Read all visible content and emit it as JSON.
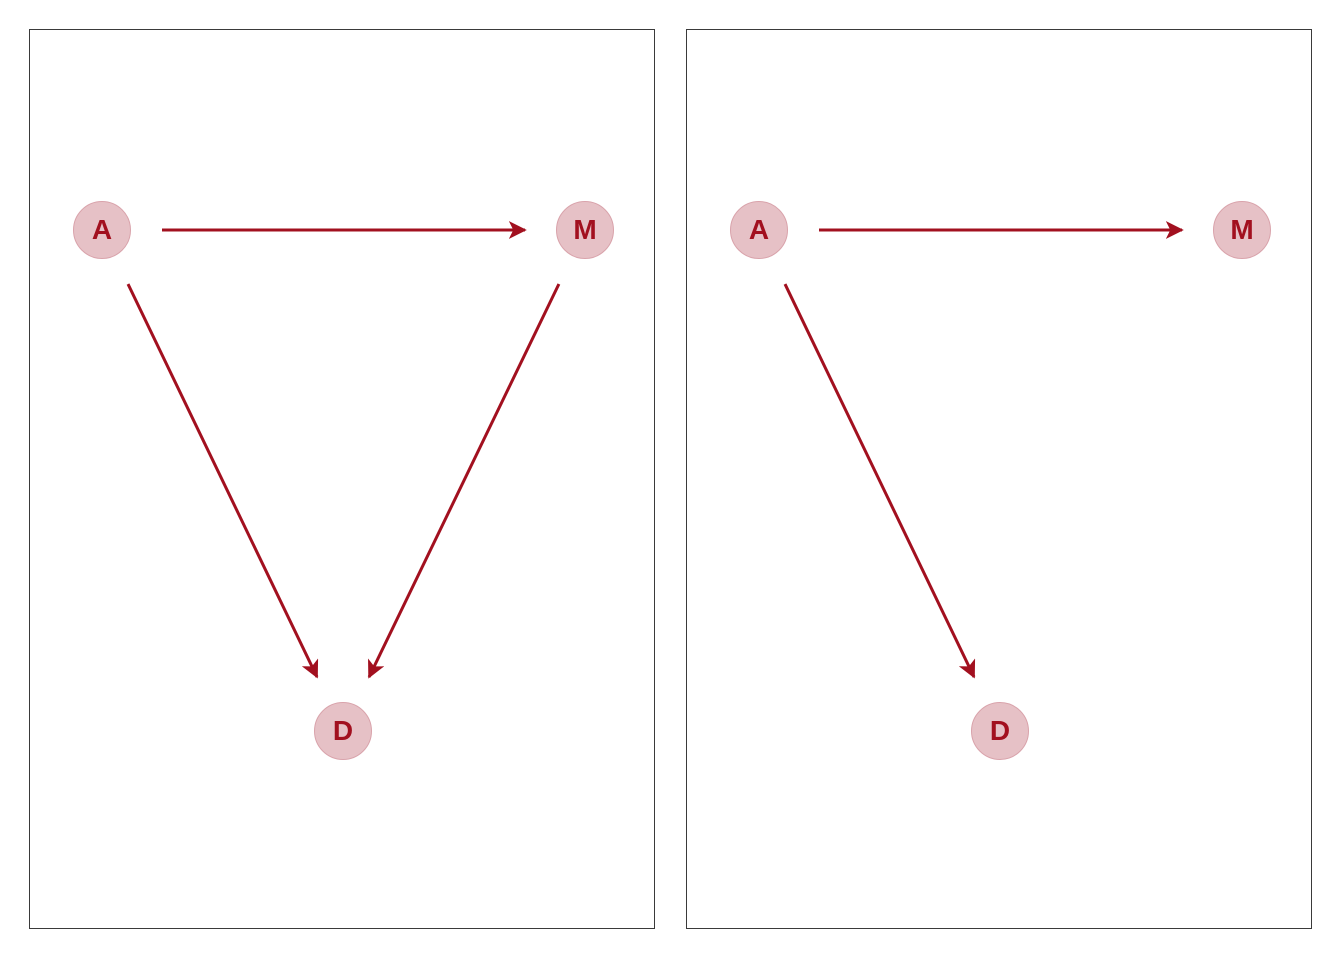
{
  "colors": {
    "edge": "#a2101f",
    "node_fill": "#e6c1c6",
    "node_border": "#d9a3ab",
    "node_text": "#a2101f",
    "panel_border": "#3a3a3a"
  },
  "panels": [
    {
      "nodes": [
        {
          "id": "A",
          "label": "A"
        },
        {
          "id": "M",
          "label": "M"
        },
        {
          "id": "D",
          "label": "D"
        }
      ],
      "edges": [
        {
          "from": "A",
          "to": "M"
        },
        {
          "from": "A",
          "to": "D"
        },
        {
          "from": "M",
          "to": "D"
        }
      ]
    },
    {
      "nodes": [
        {
          "id": "A",
          "label": "A"
        },
        {
          "id": "M",
          "label": "M"
        },
        {
          "id": "D",
          "label": "D"
        }
      ],
      "edges": [
        {
          "from": "A",
          "to": "M"
        },
        {
          "from": "A",
          "to": "D"
        }
      ]
    }
  ]
}
